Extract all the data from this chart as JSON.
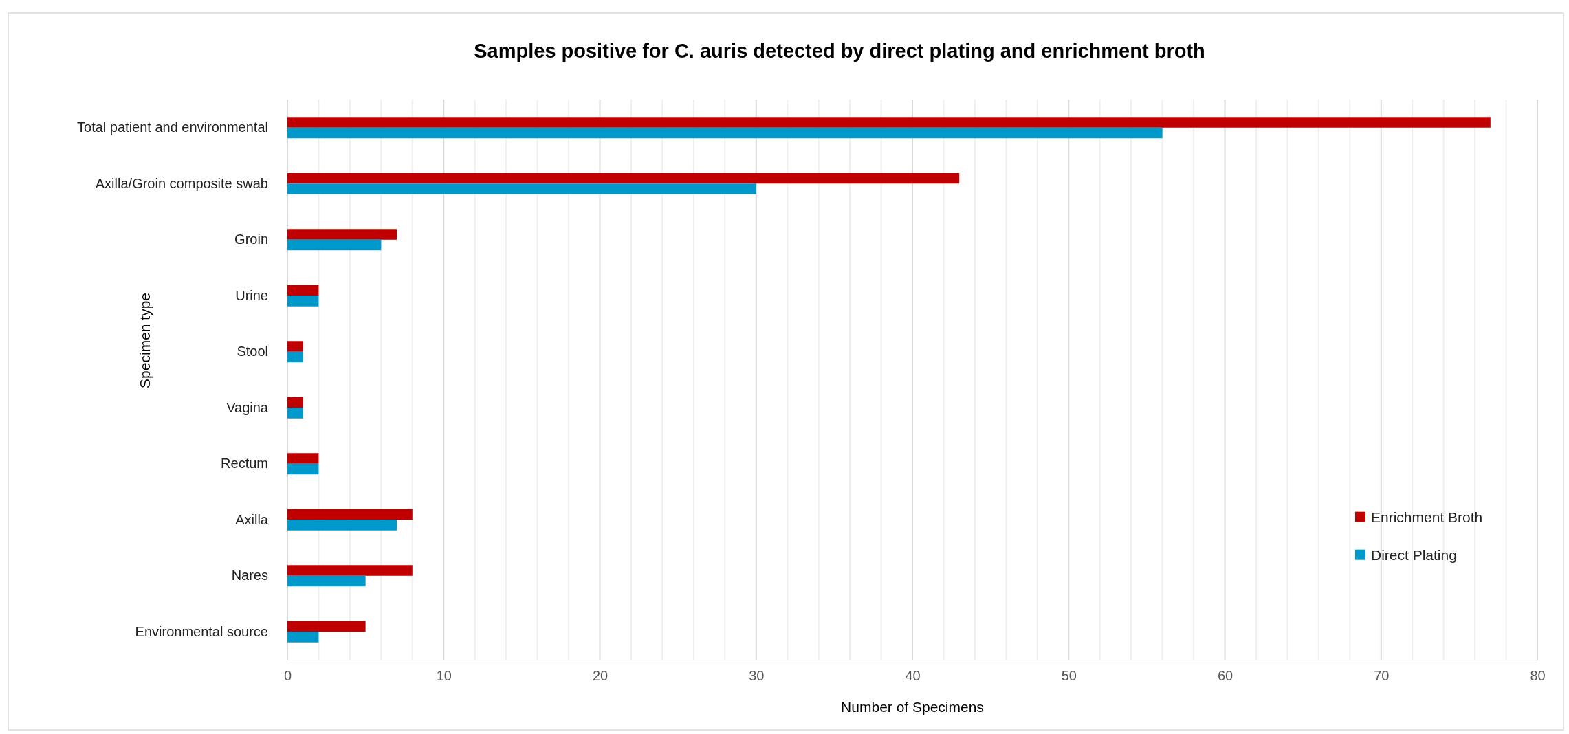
{
  "chart_data": {
    "type": "bar",
    "orientation": "horizontal",
    "title": "Samples positive for C. auris detected by direct plating and enrichment broth",
    "xlabel": "Number of Specimens",
    "ylabel": "Specimen type",
    "categories": [
      "Total patient and environmental",
      "Axilla/Groin composite swab",
      "Groin",
      "Urine",
      "Stool",
      "Vagina",
      "Rectum",
      "Axilla",
      "Nares",
      "Environmental source"
    ],
    "series": [
      {
        "name": "Enrichment Broth",
        "color": "#c00000",
        "values": [
          77,
          43,
          7,
          2,
          1,
          1,
          2,
          8,
          8,
          5
        ]
      },
      {
        "name": "Direct Plating",
        "color": "#0099cc",
        "values": [
          56,
          30,
          6,
          2,
          1,
          1,
          2,
          7,
          5,
          2
        ]
      }
    ],
    "xlim": [
      0,
      80
    ],
    "xticks": [
      0,
      {
        "value": 2,
        "label": null
      },
      {
        "value": 4,
        "label": null
      },
      {
        "value": 6,
        "label": null
      },
      {
        "value": 8,
        "label": null
      },
      10,
      {
        "value": 12,
        "label": null
      },
      {
        "value": 14,
        "label": null
      },
      {
        "value": 16,
        "label": null
      },
      {
        "value": 18,
        "label": null
      },
      20,
      {
        "value": 22,
        "label": null
      },
      {
        "value": 24,
        "label": null
      },
      {
        "value": 26,
        "label": null
      },
      {
        "value": 28,
        "label": null
      },
      30,
      {
        "value": 32,
        "label": null
      },
      {
        "value": 34,
        "label": null
      },
      {
        "value": 36,
        "label": null
      },
      {
        "value": 38,
        "label": null
      },
      40,
      {
        "value": 42,
        "label": null
      },
      {
        "value": 44,
        "label": null
      },
      {
        "value": 46,
        "label": null
      },
      {
        "value": 48,
        "label": null
      },
      50,
      {
        "value": 52,
        "label": null
      },
      {
        "value": 54,
        "label": null
      },
      {
        "value": 56,
        "label": null
      },
      {
        "value": 58,
        "label": null
      },
      60,
      {
        "value": 62,
        "label": null
      },
      {
        "value": 64,
        "label": null
      },
      {
        "value": 66,
        "label": null
      },
      {
        "value": 68,
        "label": null
      },
      70,
      {
        "value": 72,
        "label": null
      },
      {
        "value": 74,
        "label": null
      },
      {
        "value": 76,
        "label": null
      },
      {
        "value": 78,
        "label": null
      },
      80
    ],
    "grid": "x",
    "legend": "bottom right"
  }
}
